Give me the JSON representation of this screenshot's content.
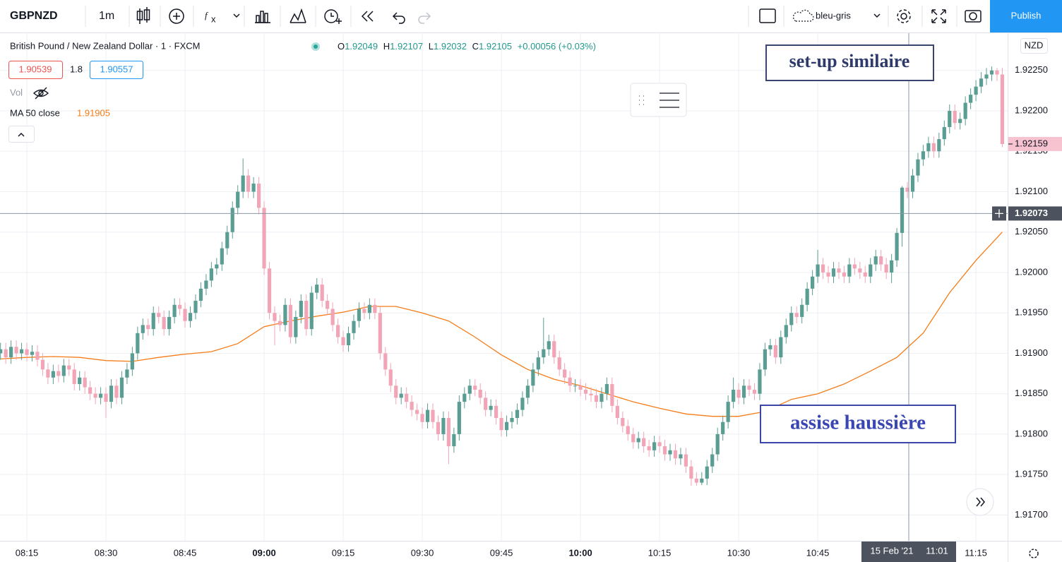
{
  "toolbar": {
    "symbol": "GBPNZD",
    "interval": "1m",
    "theme": "bleu-gris",
    "publish": "Publish"
  },
  "legend": {
    "title": "British Pound / New Zealand Dollar · 1 · FXCM",
    "ohlc": [
      {
        "key": "O",
        "value": 1.92049
      },
      {
        "key": "H",
        "value": 1.92107
      },
      {
        "key": "L",
        "value": 1.92032
      },
      {
        "key": "C",
        "value": 1.92105
      }
    ],
    "change": "+0.00056 (+0.03%)",
    "bid": 1.90539,
    "spread": 1.8,
    "ask": 1.90557,
    "volume": "Vol",
    "ma_label": "MA 50 close",
    "ma_value": 1.91905
  },
  "chart_data": {
    "type": "candlestick",
    "currency": "NZD",
    "grid": true,
    "up_color": "#5a9d93",
    "down_color": "#f2a5b7",
    "ylim": [
      1.91668,
      1.92297
    ],
    "yticks": [
      {
        "value": 1.9225,
        "label": "1.92250"
      },
      {
        "value": 1.922,
        "label": "1.92200"
      },
      {
        "value": 1.9215,
        "label": "1.92150"
      },
      {
        "value": 1.921,
        "label": "1.92100"
      },
      {
        "value": 1.9205,
        "label": "1.92050"
      },
      {
        "value": 1.92,
        "label": "1.92000"
      },
      {
        "value": 1.9195,
        "label": "1.91950"
      },
      {
        "value": 1.919,
        "label": "1.91900"
      },
      {
        "value": 1.9185,
        "label": "1.91850"
      },
      {
        "value": 1.918,
        "label": "1.91800"
      },
      {
        "value": 1.9175,
        "label": "1.91750"
      },
      {
        "value": 1.917,
        "label": "1.91700"
      }
    ],
    "xticks": [
      "08:15",
      "08:30",
      "08:45",
      "09:00",
      "09:15",
      "09:30",
      "09:45",
      "10:00",
      "10:15",
      "10:30",
      "10:45",
      "11:15"
    ],
    "last_price": 1.92159,
    "crosshair": {
      "price": 1.92073,
      "date": "15 Feb '21",
      "time": "11:01"
    },
    "annotations": [
      "set-up similaire",
      "assise haussière"
    ],
    "ma": {
      "color": "#f57c17",
      "values": [
        1.91893,
        1.91895,
        1.91896,
        1.91895,
        1.91891,
        1.9189,
        1.91895,
        1.91899,
        1.91902,
        1.91912,
        1.91933,
        1.9194,
        1.91946,
        1.91951,
        1.91958,
        1.91958,
        1.9195,
        1.9194,
        1.9192,
        1.91898,
        1.9188,
        1.91868,
        1.9186,
        1.9185,
        1.9184,
        1.91832,
        1.91825,
        1.91822,
        1.91822,
        1.91828,
        1.91843,
        1.9185,
        1.91862,
        1.91878,
        1.91895,
        1.91925,
        1.91975,
        1.92015,
        1.9205
      ]
    },
    "candles": [
      [
        1.919,
        1.91913,
        1.91892,
        1.91905
      ],
      [
        1.91905,
        1.91913,
        1.91887,
        1.91895
      ],
      [
        1.91895,
        1.91916,
        1.91887,
        1.91908
      ],
      [
        1.91908,
        1.91916,
        1.91892,
        1.919
      ],
      [
        1.919,
        1.91913,
        1.91892,
        1.91905
      ],
      [
        1.91905,
        1.91913,
        1.9189,
        1.91898
      ],
      [
        1.91898,
        1.9191,
        1.9189,
        1.91902
      ],
      [
        1.91902,
        1.9191,
        1.91884,
        1.91892
      ],
      [
        1.91892,
        1.919,
        1.91872,
        1.9188
      ],
      [
        1.9188,
        1.91888,
        1.91862,
        1.9187
      ],
      [
        1.9187,
        1.91886,
        1.91862,
        1.91878
      ],
      [
        1.91878,
        1.91886,
        1.91864,
        1.91872
      ],
      [
        1.91872,
        1.91893,
        1.91864,
        1.91885
      ],
      [
        1.91885,
        1.91893,
        1.91872,
        1.9188
      ],
      [
        1.9188,
        1.91888,
        1.91854,
        1.91862
      ],
      [
        1.91862,
        1.91878,
        1.91854,
        1.9187
      ],
      [
        1.9187,
        1.91878,
        1.9185,
        1.91858
      ],
      [
        1.91858,
        1.91866,
        1.91842,
        1.9185
      ],
      [
        1.9185,
        1.91858,
        1.91837,
        1.91845
      ],
      [
        1.91845,
        1.91858,
        1.91837,
        1.9185
      ],
      [
        1.9185,
        1.91858,
        1.9182,
        1.9184
      ],
      [
        1.9184,
        1.91868,
        1.91832,
        1.9186
      ],
      [
        1.9186,
        1.91868,
        1.91837,
        1.91845
      ],
      [
        1.91845,
        1.91878,
        1.91837,
        1.9187
      ],
      [
        1.9187,
        1.91888,
        1.91862,
        1.9188
      ],
      [
        1.9188,
        1.91908,
        1.91872,
        1.919
      ],
      [
        1.919,
        1.91933,
        1.91892,
        1.91925
      ],
      [
        1.91925,
        1.91943,
        1.91917,
        1.91935
      ],
      [
        1.91935,
        1.91943,
        1.91922,
        1.9193
      ],
      [
        1.9193,
        1.91958,
        1.91922,
        1.9195
      ],
      [
        1.9195,
        1.91958,
        1.91937,
        1.91945
      ],
      [
        1.91945,
        1.91953,
        1.91922,
        1.9193
      ],
      [
        1.9193,
        1.91953,
        1.91922,
        1.91945
      ],
      [
        1.91945,
        1.91968,
        1.91937,
        1.9196
      ],
      [
        1.9196,
        1.91968,
        1.91947,
        1.91955
      ],
      [
        1.91955,
        1.91963,
        1.91932,
        1.9194
      ],
      [
        1.9194,
        1.91958,
        1.91932,
        1.9195
      ],
      [
        1.9195,
        1.91973,
        1.91942,
        1.91965
      ],
      [
        1.91965,
        1.91988,
        1.91957,
        1.9198
      ],
      [
        1.9198,
        1.91998,
        1.91972,
        1.9199
      ],
      [
        1.9199,
        1.92013,
        1.91982,
        1.92005
      ],
      [
        1.92005,
        1.92018,
        1.91997,
        1.9201
      ],
      [
        1.9201,
        1.92038,
        1.92002,
        1.9203
      ],
      [
        1.9203,
        1.92058,
        1.92022,
        1.9205
      ],
      [
        1.9205,
        1.92088,
        1.92042,
        1.9208
      ],
      [
        1.9208,
        1.92108,
        1.92072,
        1.921
      ],
      [
        1.921,
        1.92141,
        1.92092,
        1.9212
      ],
      [
        1.9212,
        1.92128,
        1.92092,
        1.921
      ],
      [
        1.921,
        1.92118,
        1.92092,
        1.9211
      ],
      [
        1.9211,
        1.92118,
        1.92072,
        1.9208
      ],
      [
        1.9208,
        1.92088,
        1.91997,
        1.92005
      ],
      [
        1.92005,
        1.92013,
        1.91942,
        1.9195
      ],
      [
        1.9195,
        1.91958,
        1.9191,
        1.9194
      ],
      [
        1.9194,
        1.91948,
        1.91927,
        1.91935
      ],
      [
        1.91935,
        1.91968,
        1.91927,
        1.9196
      ],
      [
        1.9196,
        1.91968,
        1.91912,
        1.9192
      ],
      [
        1.9192,
        1.91953,
        1.91912,
        1.91945
      ],
      [
        1.91945,
        1.91973,
        1.91937,
        1.91965
      ],
      [
        1.91965,
        1.91973,
        1.91922,
        1.9193
      ],
      [
        1.9193,
        1.91983,
        1.91922,
        1.91975
      ],
      [
        1.91975,
        1.91993,
        1.91967,
        1.91985
      ],
      [
        1.91985,
        1.91993,
        1.91957,
        1.91965
      ],
      [
        1.91965,
        1.91973,
        1.91947,
        1.91955
      ],
      [
        1.91955,
        1.91963,
        1.91927,
        1.91935
      ],
      [
        1.91935,
        1.91943,
        1.91912,
        1.9192
      ],
      [
        1.9192,
        1.91928,
        1.91902,
        1.9191
      ],
      [
        1.9191,
        1.91933,
        1.91902,
        1.91925
      ],
      [
        1.91925,
        1.91948,
        1.91917,
        1.9194
      ],
      [
        1.9194,
        1.91963,
        1.91932,
        1.91955
      ],
      [
        1.91955,
        1.91963,
        1.91942,
        1.9195
      ],
      [
        1.9195,
        1.91968,
        1.91942,
        1.9196
      ],
      [
        1.9196,
        1.91968,
        1.91942,
        1.9195
      ],
      [
        1.9195,
        1.91958,
        1.91892,
        1.919
      ],
      [
        1.919,
        1.91908,
        1.91872,
        1.9188
      ],
      [
        1.9188,
        1.91888,
        1.91852,
        1.9186
      ],
      [
        1.9186,
        1.91868,
        1.91837,
        1.91845
      ],
      [
        1.91845,
        1.91858,
        1.91837,
        1.9185
      ],
      [
        1.9185,
        1.91858,
        1.91832,
        1.9184
      ],
      [
        1.9184,
        1.91848,
        1.91822,
        1.9183
      ],
      [
        1.9183,
        1.91838,
        1.91817,
        1.91825
      ],
      [
        1.91825,
        1.91833,
        1.91807,
        1.91815
      ],
      [
        1.91815,
        1.91838,
        1.91807,
        1.9183
      ],
      [
        1.9183,
        1.91838,
        1.91807,
        1.91815
      ],
      [
        1.91815,
        1.91823,
        1.91792,
        1.918
      ],
      [
        1.918,
        1.91828,
        1.91792,
        1.9182
      ],
      [
        1.9182,
        1.91828,
        1.91763,
        1.91785
      ],
      [
        1.91785,
        1.91808,
        1.91777,
        1.918
      ],
      [
        1.918,
        1.91848,
        1.91792,
        1.9184
      ],
      [
        1.9184,
        1.91858,
        1.91832,
        1.9185
      ],
      [
        1.9185,
        1.91868,
        1.91842,
        1.9186
      ],
      [
        1.9186,
        1.91868,
        1.91847,
        1.91855
      ],
      [
        1.91855,
        1.91863,
        1.91837,
        1.91845
      ],
      [
        1.91845,
        1.91853,
        1.91822,
        1.9183
      ],
      [
        1.9183,
        1.91843,
        1.91822,
        1.91835
      ],
      [
        1.91835,
        1.91843,
        1.91812,
        1.9182
      ],
      [
        1.9182,
        1.91828,
        1.91797,
        1.91805
      ],
      [
        1.91805,
        1.91823,
        1.91797,
        1.91815
      ],
      [
        1.91815,
        1.91828,
        1.91807,
        1.9182
      ],
      [
        1.9182,
        1.91838,
        1.91812,
        1.9183
      ],
      [
        1.9183,
        1.91853,
        1.91822,
        1.91845
      ],
      [
        1.91845,
        1.91868,
        1.91837,
        1.9186
      ],
      [
        1.9186,
        1.91888,
        1.91852,
        1.9188
      ],
      [
        1.9188,
        1.91903,
        1.91872,
        1.91895
      ],
      [
        1.91895,
        1.91944,
        1.91887,
        1.91905
      ],
      [
        1.91905,
        1.91923,
        1.91897,
        1.91915
      ],
      [
        1.91915,
        1.91923,
        1.91887,
        1.91895
      ],
      [
        1.91895,
        1.91903,
        1.91872,
        1.9188
      ],
      [
        1.9188,
        1.91888,
        1.91862,
        1.9187
      ],
      [
        1.9187,
        1.91878,
        1.91852,
        1.9186
      ],
      [
        1.9186,
        1.91868,
        1.91852,
        1.9186
      ],
      [
        1.9186,
        1.91868,
        1.91847,
        1.91855
      ],
      [
        1.91855,
        1.91863,
        1.91842,
        1.9185
      ],
      [
        1.9185,
        1.91858,
        1.9184,
        1.91848
      ],
      [
        1.91848,
        1.91856,
        1.91832,
        1.9184
      ],
      [
        1.9184,
        1.91858,
        1.91832,
        1.9185
      ],
      [
        1.9185,
        1.9187,
        1.91842,
        1.91862
      ],
      [
        1.91862,
        1.9187,
        1.91827,
        1.91835
      ],
      [
        1.91835,
        1.91843,
        1.91812,
        1.9182
      ],
      [
        1.9182,
        1.91828,
        1.91802,
        1.9181
      ],
      [
        1.9181,
        1.91818,
        1.91792,
        1.918
      ],
      [
        1.918,
        1.91808,
        1.91782,
        1.9179
      ],
      [
        1.9179,
        1.91803,
        1.91782,
        1.91795
      ],
      [
        1.91795,
        1.91803,
        1.91777,
        1.91785
      ],
      [
        1.91785,
        1.91793,
        1.91772,
        1.9178
      ],
      [
        1.9178,
        1.91798,
        1.91772,
        1.9179
      ],
      [
        1.9179,
        1.91798,
        1.91777,
        1.91785
      ],
      [
        1.91785,
        1.91793,
        1.91767,
        1.91775
      ],
      [
        1.91775,
        1.91788,
        1.91767,
        1.9178
      ],
      [
        1.9178,
        1.91788,
        1.91762,
        1.9177
      ],
      [
        1.9177,
        1.91783,
        1.91762,
        1.91775
      ],
      [
        1.91775,
        1.91783,
        1.91752,
        1.9176
      ],
      [
        1.9176,
        1.91768,
        1.91736,
        1.91745
      ],
      [
        1.91745,
        1.91753,
        1.91736,
        1.9174
      ],
      [
        1.9174,
        1.91753,
        1.91737,
        1.91745
      ],
      [
        1.91745,
        1.91768,
        1.91737,
        1.9176
      ],
      [
        1.9176,
        1.91783,
        1.91752,
        1.91775
      ],
      [
        1.91775,
        1.91808,
        1.91767,
        1.918
      ],
      [
        1.918,
        1.91823,
        1.91792,
        1.91815
      ],
      [
        1.91815,
        1.91848,
        1.91807,
        1.9184
      ],
      [
        1.9184,
        1.9187,
        1.91832,
        1.91855
      ],
      [
        1.91855,
        1.91863,
        1.91837,
        1.91845
      ],
      [
        1.91845,
        1.91868,
        1.91837,
        1.9186
      ],
      [
        1.9186,
        1.91868,
        1.91847,
        1.91855
      ],
      [
        1.91855,
        1.91863,
        1.91842,
        1.9185
      ],
      [
        1.9185,
        1.91888,
        1.91842,
        1.9188
      ],
      [
        1.9188,
        1.91913,
        1.91872,
        1.91905
      ],
      [
        1.91905,
        1.91918,
        1.91897,
        1.9191
      ],
      [
        1.9191,
        1.91918,
        1.91887,
        1.91895
      ],
      [
        1.91895,
        1.91928,
        1.91887,
        1.9192
      ],
      [
        1.9192,
        1.91943,
        1.91912,
        1.91935
      ],
      [
        1.91935,
        1.91958,
        1.91927,
        1.9195
      ],
      [
        1.9195,
        1.91958,
        1.91937,
        1.91945
      ],
      [
        1.91945,
        1.91968,
        1.91937,
        1.9196
      ],
      [
        1.9196,
        1.91988,
        1.91952,
        1.9198
      ],
      [
        1.9198,
        1.92003,
        1.91972,
        1.91995
      ],
      [
        1.91995,
        1.92028,
        1.91987,
        1.9201
      ],
      [
        1.9201,
        1.92018,
        1.91992,
        1.92
      ],
      [
        1.92,
        1.92008,
        1.91987,
        1.91995
      ],
      [
        1.91995,
        1.92013,
        1.91987,
        1.92005
      ],
      [
        1.92005,
        1.92013,
        1.91992,
        1.92
      ],
      [
        1.92,
        1.92008,
        1.91987,
        1.91995
      ],
      [
        1.91995,
        1.92018,
        1.91987,
        1.9201
      ],
      [
        1.9201,
        1.92018,
        1.91997,
        1.92005
      ],
      [
        1.92005,
        1.92013,
        1.91992,
        1.92
      ],
      [
        1.92,
        1.92008,
        1.91987,
        1.91995
      ],
      [
        1.91995,
        1.92018,
        1.91987,
        1.9201
      ],
      [
        1.9201,
        1.92028,
        1.92002,
        1.9202
      ],
      [
        1.9202,
        1.92028,
        1.92002,
        1.9201
      ],
      [
        1.9201,
        1.92018,
        1.91992,
        1.92
      ],
      [
        1.92,
        1.92023,
        1.91987,
        1.92015
      ],
      [
        1.92015,
        1.92055,
        1.92007,
        1.92049
      ],
      [
        1.92049,
        1.92107,
        1.92032,
        1.92105
      ],
      [
        1.92105,
        1.92112,
        1.92092,
        1.921
      ],
      [
        1.921,
        1.92128,
        1.92092,
        1.9212
      ],
      [
        1.9212,
        1.92148,
        1.92112,
        1.9214
      ],
      [
        1.9214,
        1.92158,
        1.92132,
        1.9215
      ],
      [
        1.9215,
        1.92168,
        1.92142,
        1.9216
      ],
      [
        1.9216,
        1.92168,
        1.92142,
        1.9215
      ],
      [
        1.9215,
        1.92173,
        1.92142,
        1.92165
      ],
      [
        1.92165,
        1.92188,
        1.92157,
        1.9218
      ],
      [
        1.9218,
        1.92208,
        1.92172,
        1.922
      ],
      [
        1.922,
        1.92208,
        1.92177,
        1.92185
      ],
      [
        1.92185,
        1.92198,
        1.92177,
        1.9219
      ],
      [
        1.9219,
        1.92218,
        1.92182,
        1.9221
      ],
      [
        1.9221,
        1.92228,
        1.92202,
        1.9222
      ],
      [
        1.9222,
        1.92238,
        1.92212,
        1.9223
      ],
      [
        1.9223,
        1.92248,
        1.92222,
        1.9224
      ],
      [
        1.9224,
        1.92253,
        1.92232,
        1.92245
      ],
      [
        1.92245,
        1.92255,
        1.92237,
        1.9225
      ],
      [
        1.9225,
        1.92253,
        1.92237,
        1.92245
      ],
      [
        1.92245,
        1.92253,
        1.92155,
        1.92159
      ]
    ]
  }
}
